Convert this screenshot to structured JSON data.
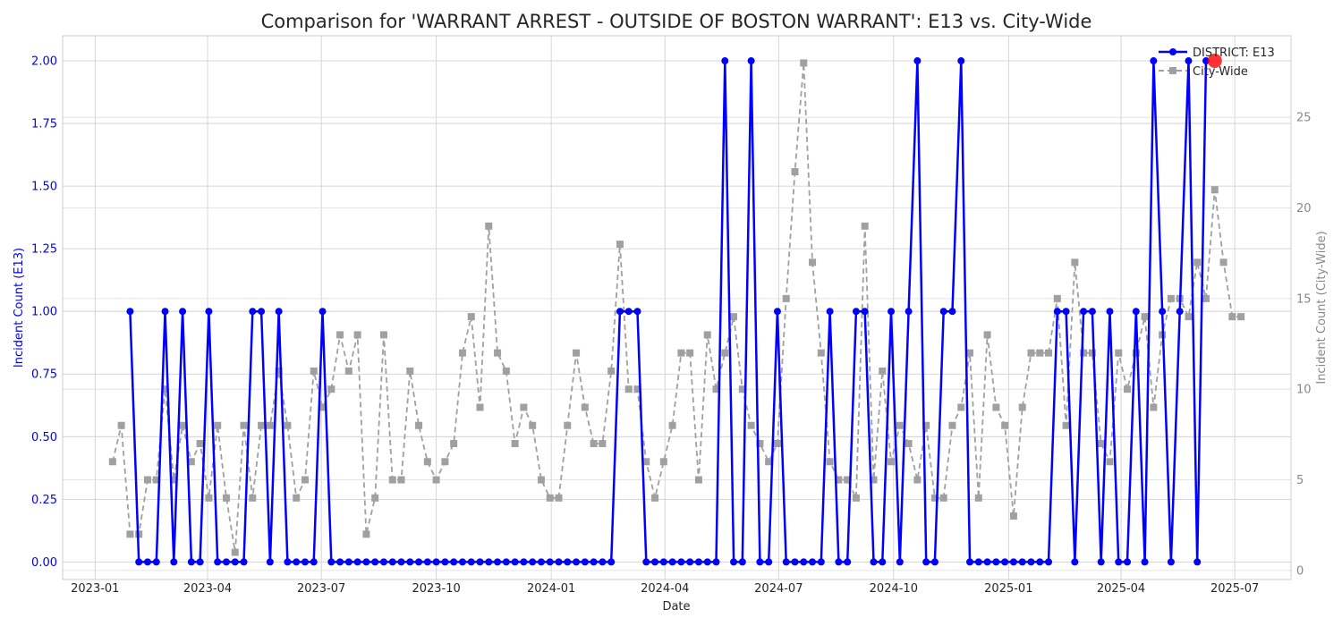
{
  "chart_data": {
    "type": "line",
    "title": "Comparison for 'WARRANT ARREST - OUTSIDE OF BOSTON WARRANT': E13 vs. City-Wide",
    "xlabel": "Date",
    "ylabel_left": "Incident Count (E13)",
    "ylabel_right": "Incident Count (City-Wide)",
    "x_ticks": [
      "2023-01",
      "2023-04",
      "2023-07",
      "2023-10",
      "2024-01",
      "2024-04",
      "2024-07",
      "2024-10",
      "2025-01",
      "2025-04",
      "2025-07"
    ],
    "y_left_ticks": [
      "0.00",
      "0.25",
      "0.50",
      "0.75",
      "1.00",
      "1.25",
      "1.50",
      "1.75",
      "2.00"
    ],
    "y_right_ticks": [
      "0",
      "5",
      "10",
      "15",
      "20",
      "25"
    ],
    "ylim_left": [
      -0.07,
      2.1
    ],
    "ylim_right": [
      -0.5,
      29.5
    ],
    "grid": true,
    "legend_position": "top-right",
    "start_date": "2023-01-08",
    "series": [
      {
        "name": "DISTRICT: E13",
        "axis": "left",
        "color": "#0000ff",
        "marker": "circle",
        "linestyle": "solid",
        "start_index": 3,
        "values": [
          1,
          0,
          0,
          0,
          1,
          0,
          1,
          0,
          0,
          1,
          0,
          0,
          0,
          0,
          1,
          1,
          0,
          1,
          0,
          0,
          0,
          0,
          1,
          0,
          0,
          0,
          0,
          0,
          0,
          0,
          0,
          0,
          0,
          0,
          0,
          0,
          0,
          0,
          0,
          0,
          0,
          0,
          0,
          0,
          0,
          0,
          0,
          0,
          0,
          0,
          0,
          0,
          0,
          0,
          0,
          0,
          1,
          1,
          1,
          0,
          0,
          0,
          0,
          0,
          0,
          0,
          0,
          0,
          2,
          0,
          0,
          2,
          0,
          0,
          1,
          0,
          0,
          0,
          0,
          0,
          1,
          0,
          0,
          1,
          1,
          0,
          0,
          1,
          0,
          1,
          2,
          0,
          0,
          1,
          1,
          2,
          0,
          0,
          0,
          0,
          0,
          0,
          0,
          0,
          0,
          0,
          1,
          1,
          0,
          1,
          1,
          0,
          1,
          0,
          0,
          1,
          0,
          2,
          1,
          0,
          1,
          2,
          0,
          2
        ]
      },
      {
        "name": "City-Wide",
        "axis": "right",
        "color": "#a0a0a0",
        "marker": "square",
        "linestyle": "dashed",
        "start_index": 1,
        "values": [
          6,
          8,
          2,
          2,
          5,
          5,
          10,
          5,
          8,
          6,
          7,
          4,
          8,
          4,
          1,
          8,
          4,
          8,
          8,
          11,
          8,
          4,
          5,
          11,
          9,
          10,
          13,
          11,
          13,
          2,
          4,
          13,
          5,
          5,
          11,
          8,
          6,
          5,
          6,
          7,
          12,
          14,
          9,
          19,
          12,
          11,
          7,
          9,
          8,
          5,
          4,
          4,
          8,
          12,
          9,
          7,
          7,
          11,
          18,
          10,
          10,
          6,
          4,
          6,
          8,
          12,
          12,
          5,
          13,
          10,
          12,
          14,
          10,
          8,
          7,
          6,
          7,
          15,
          22,
          28,
          17,
          12,
          6,
          5,
          5,
          4,
          19,
          5,
          11,
          6,
          8,
          7,
          5,
          8,
          4,
          4,
          8,
          9,
          12,
          4,
          13,
          9,
          8,
          3,
          9,
          12,
          12,
          12,
          15,
          8,
          17,
          12,
          12,
          7,
          6,
          12,
          10,
          12,
          14,
          9,
          13,
          15,
          15,
          14,
          17,
          15,
          21,
          17,
          14,
          14
        ]
      }
    ],
    "highlight": {
      "series": "DISTRICT: E13",
      "date": "2025-06-15",
      "value": 2,
      "color": "#ff0000"
    }
  }
}
